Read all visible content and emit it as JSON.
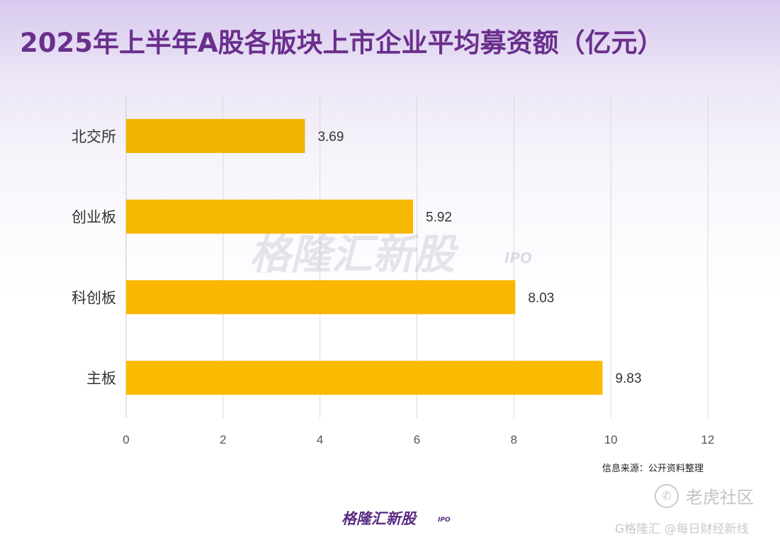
{
  "title": "2025年上半年A股各版块上市企业平均募资额（亿元）",
  "chart_data": {
    "type": "bar",
    "orientation": "horizontal",
    "title": "2025年上半年A股各版块上市企业平均募资额（亿元）",
    "categories": [
      "北交所",
      "创业板",
      "科创板",
      "主板"
    ],
    "values": [
      3.69,
      5.92,
      8.03,
      9.83
    ],
    "value_labels": [
      "3.69",
      "5.92",
      "8.03",
      "9.83"
    ],
    "xlim": [
      0,
      12
    ],
    "xticks": [
      "0",
      "2",
      "4",
      "6",
      "8",
      "10",
      "12"
    ],
    "grid": "vertical",
    "bar_colors": [
      "#f0b400",
      "#f5b700",
      "#fab800",
      "#fdbb00"
    ]
  },
  "watermark": {
    "text": "格隆汇新股",
    "suffix": "IPO"
  },
  "source": "信息来源：公开资料整理",
  "brand": {
    "name": "格隆汇新股",
    "suffix": "IPO"
  },
  "tiger": {
    "icon": "tiger-community-icon",
    "text": "老虎社区"
  },
  "footer": {
    "text": "G格隆汇 @每日财经新线"
  },
  "colors": {
    "title": "#6a2f8c",
    "bar": "#fbb800",
    "grid": "#d9d9d9",
    "axis_text": "#555555"
  }
}
